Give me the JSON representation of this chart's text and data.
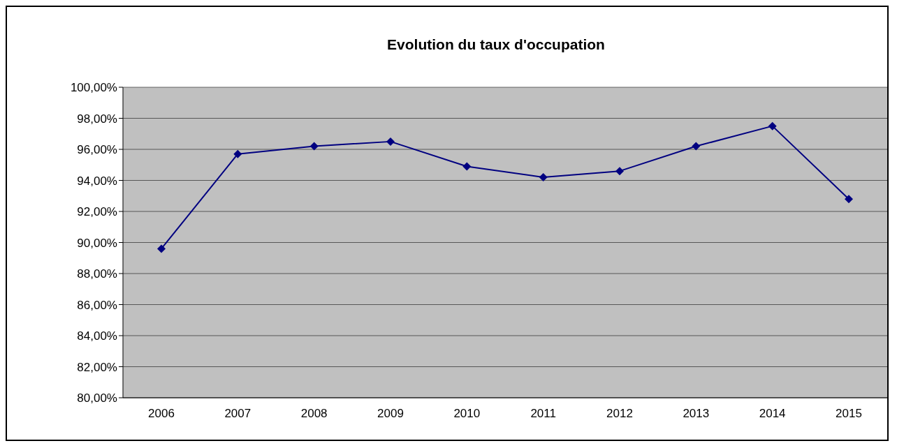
{
  "chart_data": {
    "type": "line",
    "title": "Evolution du taux d'occupation",
    "categories": [
      "2006",
      "2007",
      "2008",
      "2009",
      "2010",
      "2011",
      "2012",
      "2013",
      "2014",
      "2015"
    ],
    "series": [
      {
        "color": "#000080",
        "values": [
          89.6,
          95.7,
          96.2,
          96.5,
          94.9,
          94.2,
          94.6,
          96.2,
          97.5,
          92.8
        ]
      }
    ],
    "ylim": [
      80,
      100
    ],
    "yticks": [
      {
        "value": 80,
        "label": "80,00%"
      },
      {
        "value": 82,
        "label": "82,00%"
      },
      {
        "value": 84,
        "label": "84,00%"
      },
      {
        "value": 86,
        "label": "86,00%"
      },
      {
        "value": 88,
        "label": "88,00%"
      },
      {
        "value": 90,
        "label": "90,00%"
      },
      {
        "value": 92,
        "label": "92,00%"
      },
      {
        "value": 94,
        "label": "94,00%"
      },
      {
        "value": 96,
        "label": "96,00%"
      },
      {
        "value": 98,
        "label": "98,00%"
      },
      {
        "value": 100,
        "label": "100,00%"
      }
    ],
    "grid": "y",
    "marker": "diamond",
    "line_style": "solid",
    "legend": false
  }
}
